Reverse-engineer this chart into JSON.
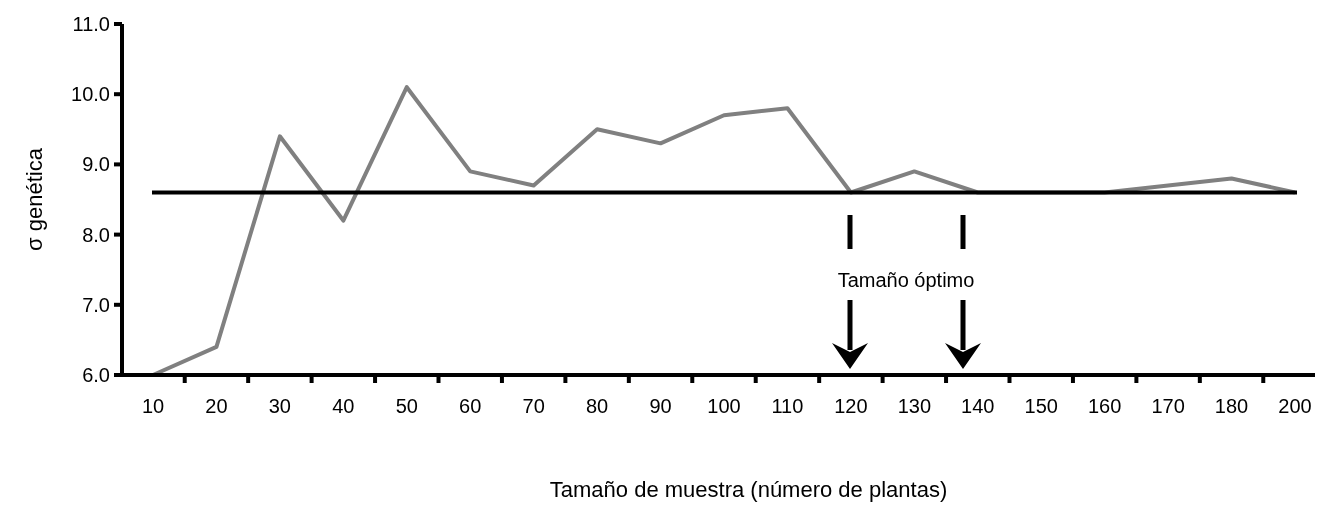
{
  "chart_data": {
    "type": "line",
    "xlabel": "Tamaño de muestra (número de plantas)",
    "ylabel": "σ genética",
    "categories": [
      "10",
      "20",
      "30",
      "40",
      "50",
      "60",
      "70",
      "80",
      "90",
      "100",
      "110",
      "120",
      "130",
      "140",
      "150",
      "160",
      "170",
      "180",
      "200"
    ],
    "series": [
      {
        "color": "#808080",
        "values": [
          6.0,
          6.4,
          9.4,
          8.2,
          10.1,
          8.9,
          8.7,
          9.5,
          9.3,
          9.7,
          9.8,
          8.6,
          8.9,
          8.6,
          8.6,
          8.6,
          8.7,
          8.8,
          8.6
        ]
      }
    ],
    "ylim": [
      6.0,
      11.0
    ],
    "yticks": [
      {
        "value": 6,
        "label": "6.0"
      },
      {
        "value": 7,
        "label": "7.0"
      },
      {
        "value": 8,
        "label": "8.0"
      },
      {
        "value": 9,
        "label": "9.0"
      },
      {
        "value": 10,
        "label": "10.0"
      },
      {
        "value": 11,
        "label": "11.0"
      }
    ],
    "ref_lines": [
      {
        "axis": "y",
        "value": 8.6,
        "color": "#000000"
      }
    ],
    "annotations": [
      "Tamaño óptimo"
    ],
    "grid": false,
    "marker": "none",
    "line_style": "solid"
  }
}
